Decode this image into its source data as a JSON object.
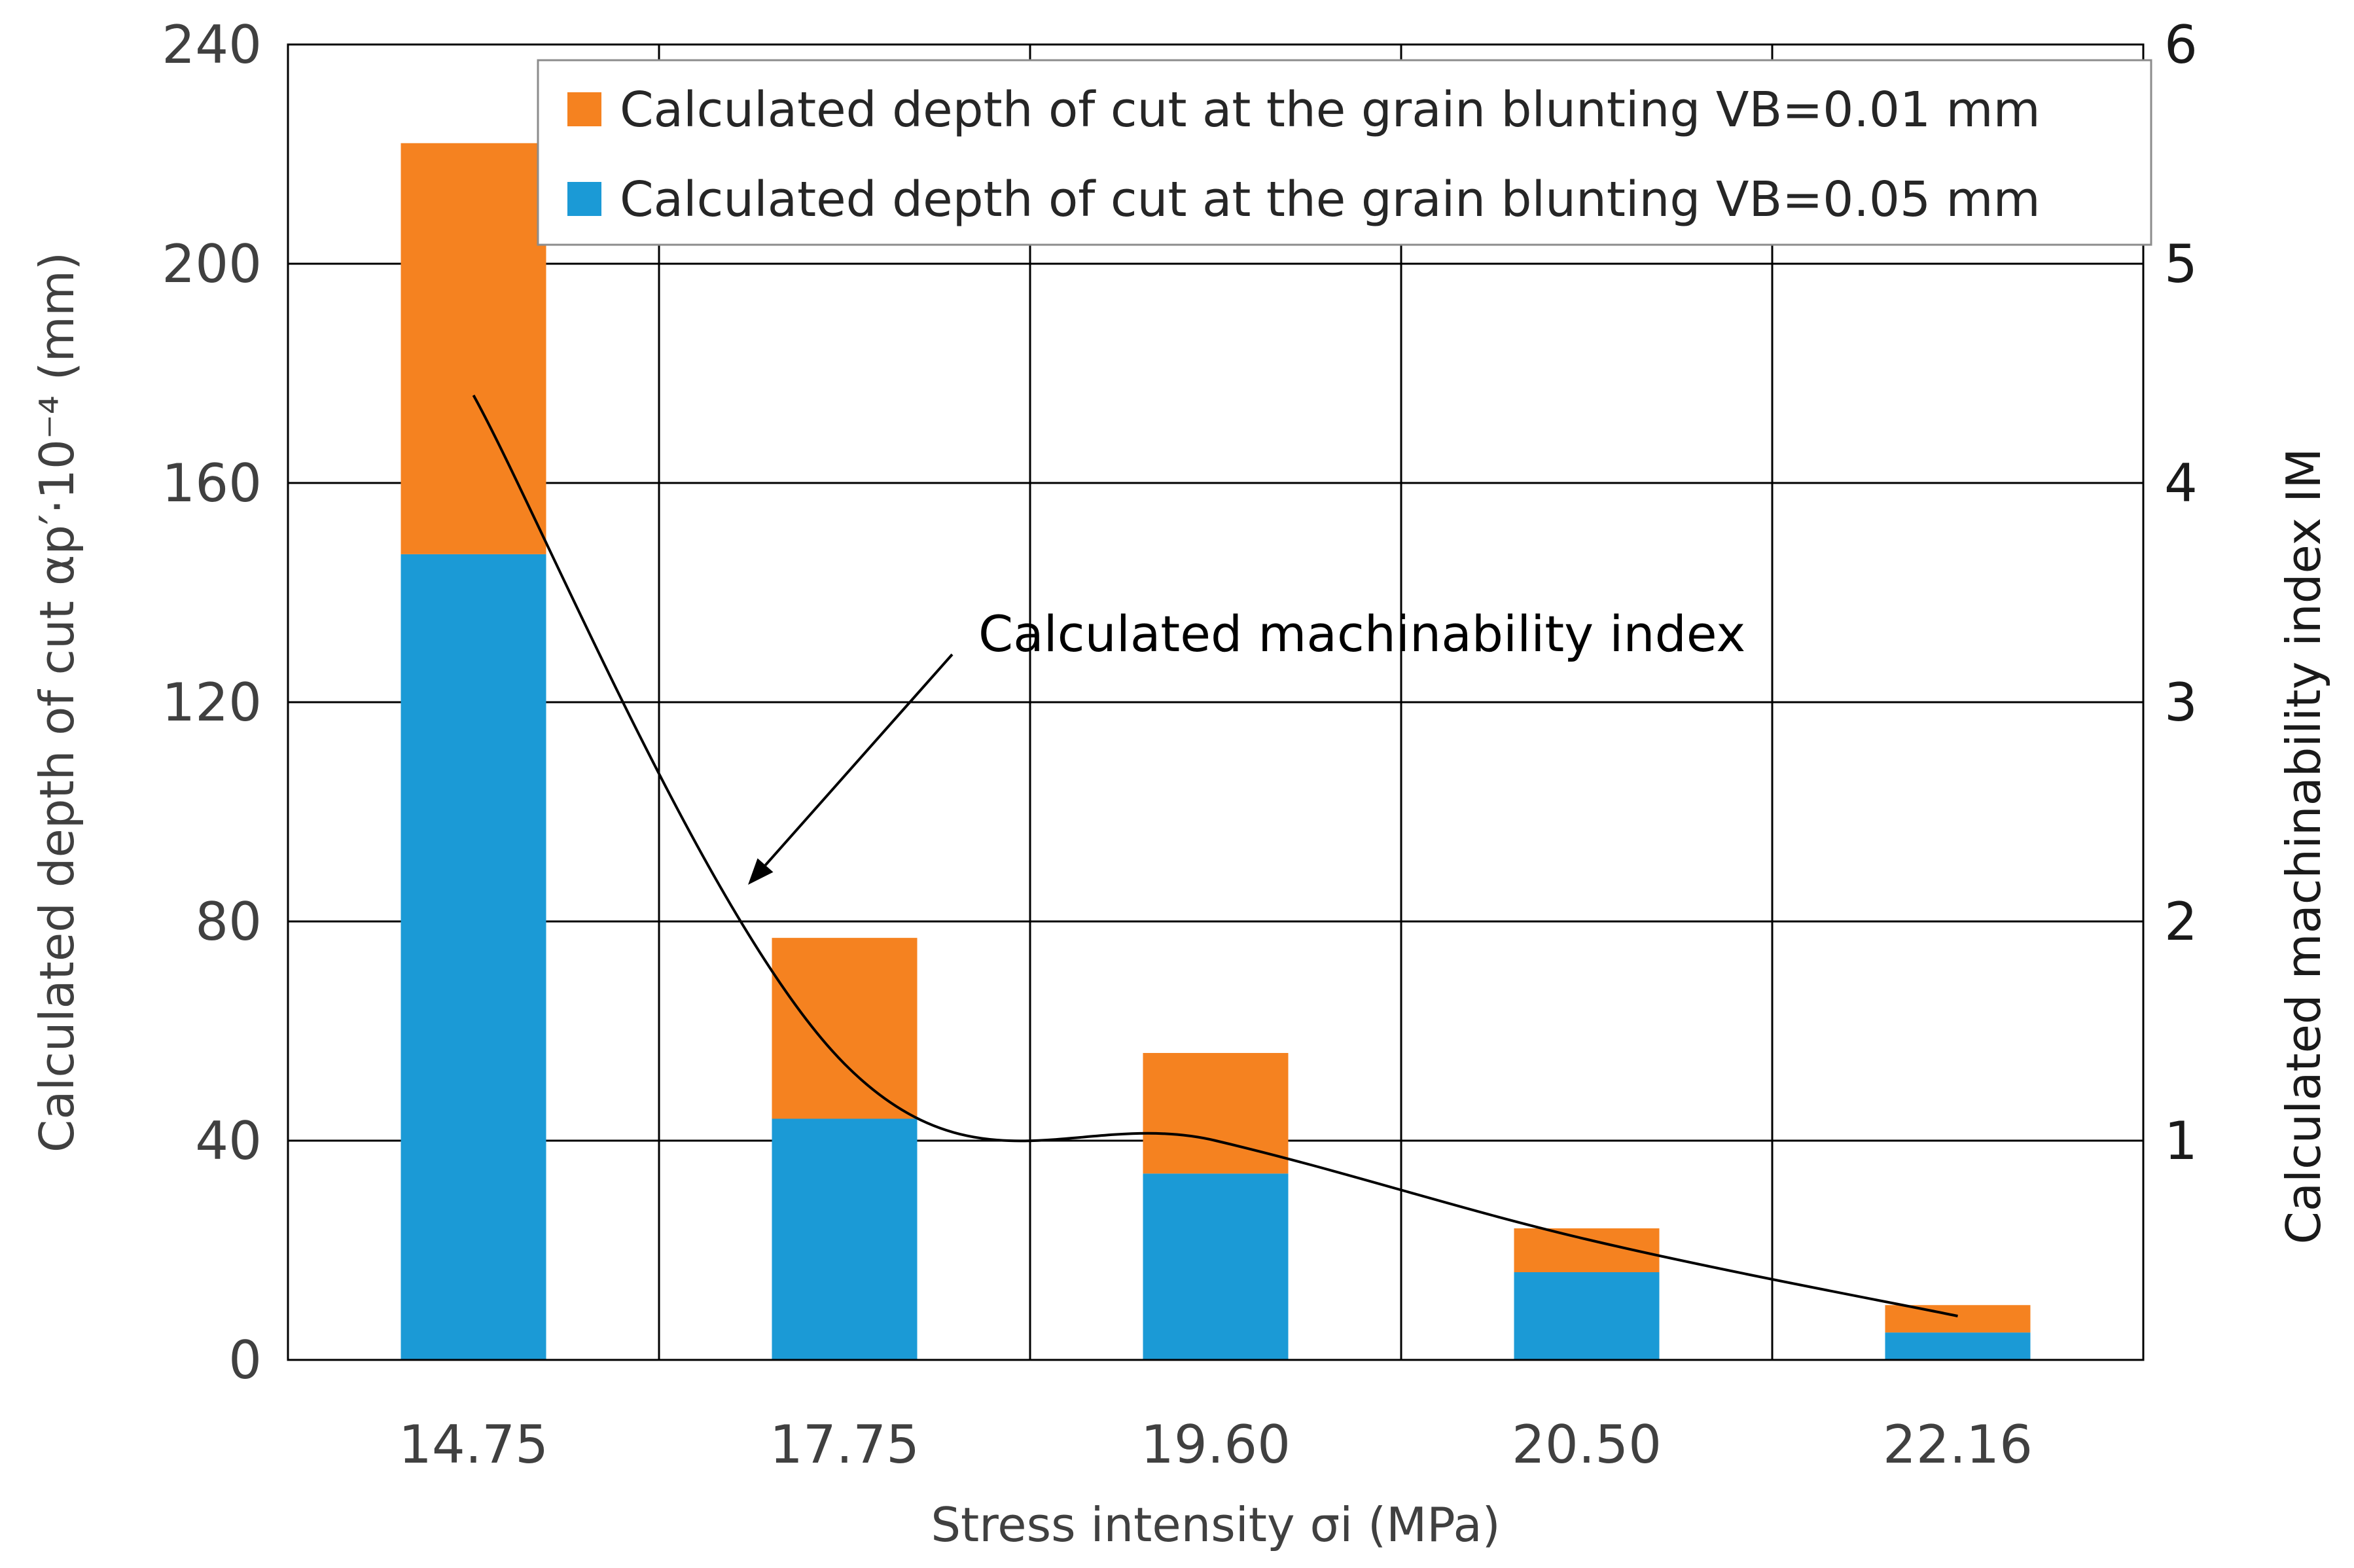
{
  "chart_data": {
    "type": "bar",
    "stacked": true,
    "categories": [
      "14.75",
      "17.75",
      "19.60",
      "20.50",
      "22.16"
    ],
    "xlabel": "Stress intensity σi (MPa)",
    "ylabel": "Calculated depth of cut αp′·10⁻⁴ (mm)",
    "y2label": "Calculated machinability index IM",
    "ylim": [
      0,
      240
    ],
    "y2lim": [
      0,
      6
    ],
    "yticks": [
      "0",
      "40",
      "80",
      "120",
      "160",
      "200",
      "240"
    ],
    "y2ticks": [
      "1",
      "2",
      "3",
      "4",
      "5",
      "6"
    ],
    "grid": true,
    "legend_position": "top-right",
    "series": [
      {
        "name": "Calculated depth of cut at the grain blunting VB=0.05 mm",
        "color": "#1b9ad6",
        "values": [
          147,
          44,
          34,
          16,
          5
        ]
      },
      {
        "name": "Calculated depth of cut at the grain blunting VB=0.01 mm",
        "color": "#f58220",
        "values": [
          75,
          33,
          22,
          8,
          5
        ]
      }
    ],
    "line": {
      "axis": "right",
      "color": "#000000",
      "values": [
        4.4,
        1.35,
        1.0,
        0.55,
        0.2
      ]
    },
    "annotation": "Calculated machinability index"
  }
}
